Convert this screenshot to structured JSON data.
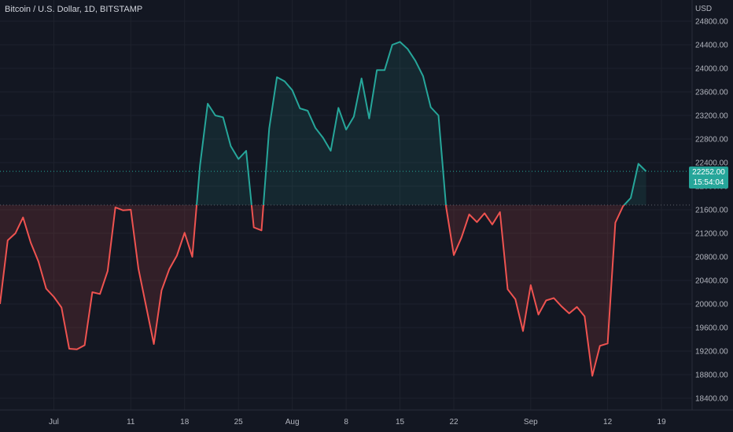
{
  "header": {
    "title": "Bitcoin / U.S. Dollar, 1D, BITSTAMP"
  },
  "price_badge": {
    "price": "22252.00",
    "countdown": "15:54:04"
  },
  "colors": {
    "background": "#131722",
    "up": "#26a69a",
    "down": "#ef5350",
    "grid": "#1e222d",
    "text": "#b2b5be"
  },
  "chart_data": {
    "type": "area",
    "symbol": "Bitcoin / U.S. Dollar, 1D, BITSTAMP",
    "currency_label": "USD",
    "baseline": 21680,
    "last_price": 22252,
    "ylim": [
      18300,
      24900
    ],
    "y_ticks": [
      24800,
      24400,
      24000,
      23600,
      23200,
      22800,
      22400,
      22000,
      21600,
      21200,
      20800,
      20400,
      20000,
      19600,
      19200,
      18800,
      18400
    ],
    "x_ticks": [
      "Jul",
      "11",
      "18",
      "25",
      "Aug",
      "8",
      "15",
      "22",
      "Sep",
      "12",
      "19"
    ],
    "x_ticks_index": [
      7,
      17,
      24,
      31,
      38,
      45,
      52,
      59,
      69,
      79,
      86
    ],
    "values": [
      20000,
      21080,
      21200,
      21470,
      21040,
      20720,
      20260,
      20120,
      19940,
      19240,
      19230,
      19300,
      20200,
      20170,
      20560,
      21640,
      21590,
      21600,
      20600,
      19960,
      19320,
      20230,
      20590,
      20820,
      21210,
      20800,
      22350,
      23400,
      23200,
      23170,
      22680,
      22460,
      22600,
      21300,
      21250,
      22980,
      23850,
      23780,
      23630,
      23320,
      23280,
      22990,
      22820,
      22600,
      23330,
      22960,
      23180,
      23830,
      23150,
      23970,
      23970,
      24400,
      24450,
      24330,
      24130,
      23870,
      23340,
      23200,
      21650,
      20830,
      21130,
      21520,
      21390,
      21540,
      21350,
      21560,
      20250,
      20080,
      19540,
      20320,
      19820,
      20060,
      20100,
      19960,
      19840,
      19950,
      19790,
      18780,
      19290,
      19330,
      21380,
      21660,
      21800,
      22380,
      22252
    ]
  }
}
